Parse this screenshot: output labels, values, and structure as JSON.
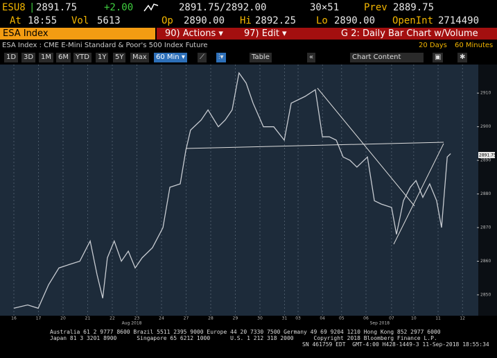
{
  "header": {
    "ticker": "ESU8",
    "last": "2891.75",
    "change": "+2.00",
    "bid_ask": "2891.75/2892.00",
    "size": "30×51",
    "prev_label": "Prev",
    "prev": "2889.75",
    "at_label": "At",
    "time": "18:55",
    "vol_label": "Vol",
    "vol": "5613",
    "op_label": "Op",
    "op": "2890.00",
    "hi_label": "Hi",
    "hi": "2892.25",
    "lo_label": "Lo",
    "lo": "2890.00",
    "oi_label": "OpenInt",
    "oi": "2714490"
  },
  "menu": {
    "security": "ESA Index",
    "actions": "90) Actions ▾",
    "edit": "97) Edit ▾",
    "function": "G 2: Daily Bar Chart w/Volume"
  },
  "info": {
    "description": "ESA Index : CME E-Mini Standard & Poor's 500 Index Future",
    "range": "20 Days",
    "interval": "60 Minutes"
  },
  "toolbar": {
    "periods": [
      "1D",
      "3D",
      "1M",
      "6M",
      "YTD",
      "1Y",
      "5Y",
      "Max"
    ],
    "frequency": "60 Min ▾",
    "table": "Table",
    "prev": "«",
    "chart_content": "Chart Content"
  },
  "chart_data": {
    "type": "line",
    "color": "#c8ccd2",
    "series": [
      {
        "name": "ESA Index",
        "x": [
          0,
          0.56,
          0.99,
          1.41,
          1.83,
          2.25,
          2.68,
          3.1,
          3.38,
          3.61,
          3.8,
          4.08,
          4.37,
          4.65,
          4.93,
          5.21,
          5.63,
          6.06,
          6.34,
          6.76,
          6.99,
          7.18,
          7.61,
          7.89,
          8.31,
          8.59,
          8.87,
          9.15,
          9.44,
          9.72,
          10.14,
          10.56,
          10.99,
          11.27,
          11.83,
          12.25,
          12.54,
          12.82,
          13.1,
          13.38,
          13.66,
          13.94,
          14.37,
          14.65,
          14.93,
          15.35,
          15.55,
          15.83,
          16.11,
          16.34,
          16.62,
          16.9,
          17.18,
          17.38,
          17.61,
          17.75
        ],
        "values": [
          2846,
          2847,
          2846,
          2853,
          2858,
          2859,
          2860,
          2866,
          2856,
          2849,
          2861,
          2866,
          2860,
          2863,
          2858,
          2861,
          2864,
          2870,
          2882,
          2883,
          2893,
          2899,
          2902,
          2905,
          2900,
          2902,
          2905,
          2916,
          2913,
          2907,
          2900,
          2900,
          2896,
          2907,
          2909,
          2911,
          2897,
          2897,
          2896,
          2891,
          2890,
          2888,
          2891,
          2878,
          2877,
          2876,
          2868,
          2878,
          2882,
          2884,
          2879,
          2883,
          2878,
          2870,
          2891,
          2892
        ]
      }
    ],
    "xlim": [
      -0.42,
      18.82
    ],
    "ylim": [
      2843.8,
      2918.5
    ],
    "xticks": [
      {
        "value": 0,
        "label": "16"
      },
      {
        "value": 1,
        "label": "17"
      },
      {
        "value": 2,
        "label": "20"
      },
      {
        "value": 3,
        "label": "21"
      },
      {
        "value": 4,
        "label": "22"
      },
      {
        "value": 5,
        "label": "23"
      },
      {
        "value": 6,
        "label": "24"
      },
      {
        "value": 7,
        "label": "27"
      },
      {
        "value": 8,
        "label": "28"
      },
      {
        "value": 9,
        "label": "29"
      },
      {
        "value": 10,
        "label": "30"
      },
      {
        "value": 11,
        "label": "31"
      },
      {
        "value": 11.55,
        "label": "03"
      },
      {
        "value": 12.54,
        "label": "04"
      },
      {
        "value": 13.32,
        "label": "05"
      },
      {
        "value": 14.31,
        "label": "06"
      },
      {
        "value": 15.35,
        "label": "07"
      },
      {
        "value": 16.25,
        "label": "10"
      },
      {
        "value": 17.24,
        "label": "11"
      },
      {
        "value": 18.23,
        "label": "12"
      }
    ],
    "yticks": [
      2850,
      2860,
      2870,
      2880,
      2890,
      2900,
      2910
    ],
    "annotations": [
      {
        "x": 4.79,
        "text": "Aug 2018"
      },
      {
        "x": 14.87,
        "text": "Sep 2018"
      }
    ],
    "grid": true
  },
  "footer": {
    "line1": "Australia 61 2 9777 8600 Brazil 5511 2395 9000 Europe 44 20 7330 7500 Germany 49 69 9204 1210 Hong Kong 852 2977 6000",
    "line2": "Japan 81 3 3201 8900      Singapore 65 6212 1000      U.S. 1 212 318 2000      Copyright 2018 Bloomberg Finance L.P.",
    "line3": "SN 461759 EDT  GMT-4:00 H428-1449-3 11-Sep-2018 18:55:34"
  }
}
